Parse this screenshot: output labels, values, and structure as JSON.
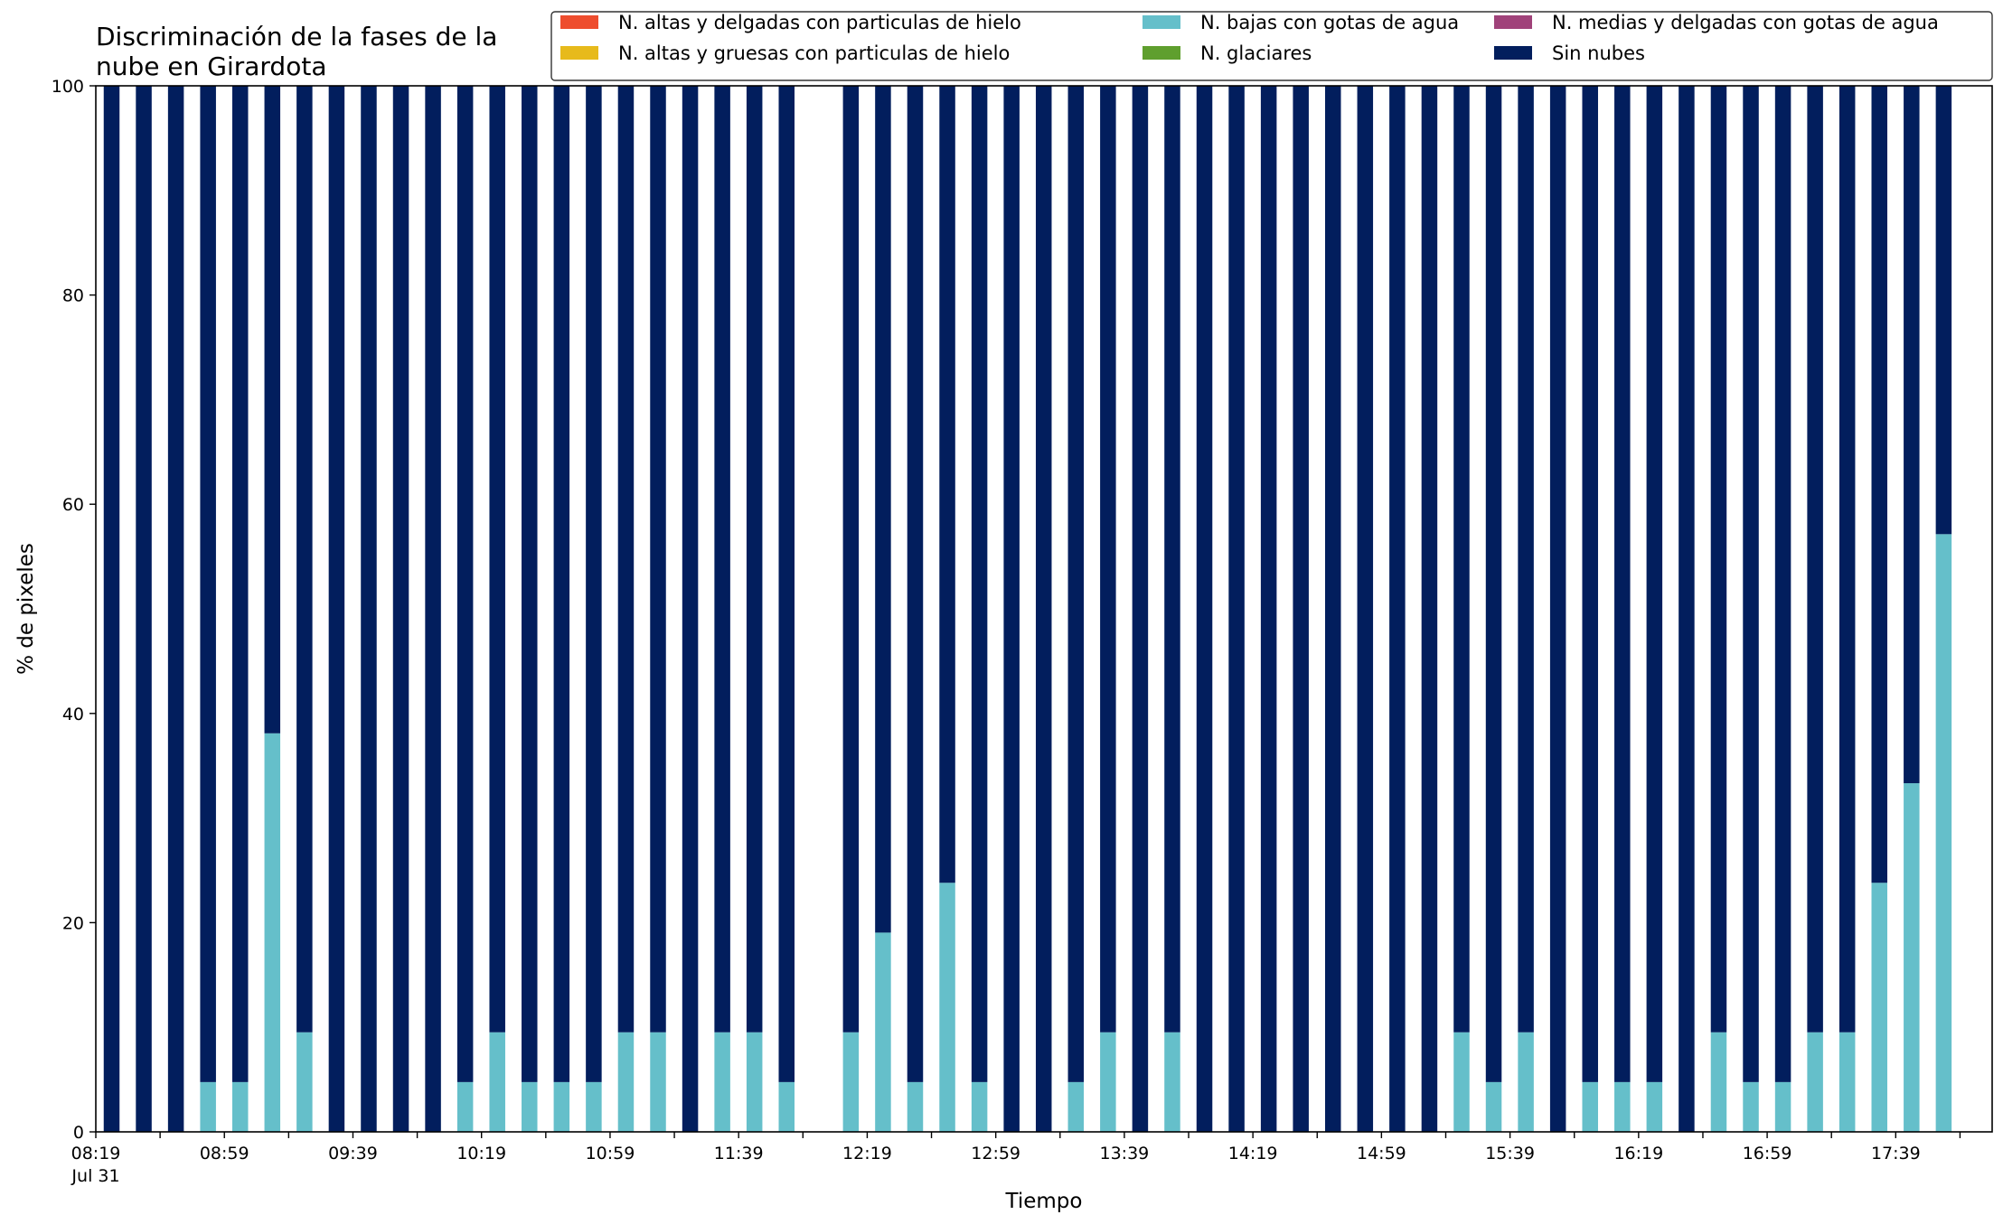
{
  "chart_data": {
    "type": "bar",
    "stacked": true,
    "title_lines": [
      "Discriminación de la fases de la",
      "nube en Girardota"
    ],
    "xlabel": "Tiempo",
    "ylabel": "% de pixeles",
    "ylim": [
      0,
      100
    ],
    "yticks": [
      0,
      20,
      40,
      60,
      80,
      100
    ],
    "date_label": "Jul 31",
    "x_start": "08:19",
    "x_end": "18:09",
    "bar_interval_minutes": 10,
    "x_tick_labels": [
      "08:19",
      "08:59",
      "09:39",
      "10:19",
      "10:59",
      "11:39",
      "12:19",
      "12:59",
      "13:39",
      "14:19",
      "14:59",
      "15:39",
      "16:19",
      "16:59",
      "17:39"
    ],
    "categories": [
      "08:19",
      "08:29",
      "08:39",
      "08:49",
      "08:59",
      "09:09",
      "09:19",
      "09:29",
      "09:39",
      "09:49",
      "09:59",
      "10:09",
      "10:19",
      "10:29",
      "10:39",
      "10:49",
      "10:59",
      "11:09",
      "11:19",
      "11:29",
      "11:39",
      "11:49",
      "11:59",
      "12:09",
      "12:19",
      "12:29",
      "12:39",
      "12:49",
      "12:59",
      "13:09",
      "13:19",
      "13:29",
      "13:39",
      "13:49",
      "13:59",
      "14:09",
      "14:19",
      "14:29",
      "14:39",
      "14:49",
      "14:59",
      "15:09",
      "15:19",
      "15:29",
      "15:39",
      "15:49",
      "15:59",
      "16:09",
      "16:19",
      "16:29",
      "16:39",
      "16:49",
      "16:59",
      "17:09",
      "17:19",
      "17:29",
      "17:39",
      "17:49"
    ],
    "series": [
      {
        "name": "N. altas y delgadas con particulas de hielo",
        "color": "#ee4d2e",
        "values": [
          0,
          0,
          0,
          0,
          0,
          0,
          0,
          0,
          0,
          0,
          0,
          0,
          0,
          0,
          0,
          0,
          0,
          0,
          0,
          0,
          0,
          0,
          null,
          0,
          0,
          0,
          0,
          0,
          0,
          0,
          0,
          0,
          0,
          0,
          0,
          0,
          0,
          0,
          0,
          0,
          0,
          0,
          0,
          0,
          0,
          0,
          0,
          0,
          0,
          0,
          0,
          0,
          0,
          0,
          0,
          0,
          0,
          0
        ]
      },
      {
        "name": "N. altas y gruesas con particulas de hielo",
        "color": "#e7ba1b",
        "values": [
          0,
          0,
          0,
          0,
          0,
          0,
          0,
          0,
          0,
          0,
          0,
          0,
          0,
          0,
          0,
          0,
          0,
          0,
          0,
          0,
          0,
          0,
          null,
          0,
          0,
          0,
          0,
          0,
          0,
          0,
          0,
          0,
          0,
          0,
          0,
          0,
          0,
          0,
          0,
          0,
          0,
          0,
          0,
          0,
          0,
          0,
          0,
          0,
          0,
          0,
          0,
          0,
          0,
          0,
          0,
          0,
          0,
          0
        ]
      },
      {
        "name": "N. bajas con gotas de agua",
        "color": "#65bfca",
        "values": [
          0,
          0,
          0,
          4.76,
          4.76,
          38.1,
          9.52,
          0,
          0,
          0,
          0,
          4.76,
          9.52,
          4.76,
          4.76,
          4.76,
          9.52,
          9.52,
          0,
          9.52,
          9.52,
          4.76,
          null,
          9.52,
          19.05,
          4.76,
          23.81,
          4.76,
          0,
          0,
          4.76,
          9.52,
          0,
          9.52,
          0,
          0,
          0,
          0,
          0,
          0,
          0,
          0,
          9.52,
          4.76,
          9.52,
          0,
          4.76,
          4.76,
          4.76,
          0,
          9.52,
          4.76,
          4.76,
          9.52,
          9.52,
          23.81,
          33.33,
          57.14
        ]
      },
      {
        "name": "N. glaciares",
        "color": "#5f9f2e",
        "values": [
          0,
          0,
          0,
          0,
          0,
          0,
          0,
          0,
          0,
          0,
          0,
          0,
          0,
          0,
          0,
          0,
          0,
          0,
          0,
          0,
          0,
          0,
          null,
          0,
          0,
          0,
          0,
          0,
          0,
          0,
          0,
          0,
          0,
          0,
          0,
          0,
          0,
          0,
          0,
          0,
          0,
          0,
          0,
          0,
          0,
          0,
          0,
          0,
          0,
          0,
          0,
          0,
          0,
          0,
          0,
          0,
          0,
          0
        ]
      },
      {
        "name": "N. medias y delgadas con gotas de agua",
        "color": "#a0427a",
        "values": [
          0,
          0,
          0,
          0,
          0,
          0,
          0,
          0,
          0,
          0,
          0,
          0,
          0,
          0,
          0,
          0,
          0,
          0,
          0,
          0,
          0,
          0,
          null,
          0,
          0,
          0,
          0,
          0,
          0,
          0,
          0,
          0,
          0,
          0,
          0,
          0,
          0,
          0,
          0,
          0,
          0,
          0,
          0,
          0,
          0,
          0,
          0,
          0,
          0,
          0,
          0,
          0,
          0,
          0,
          0,
          0,
          0,
          0
        ]
      },
      {
        "name": "Sin nubes",
        "color": "#021e5d",
        "values": [
          100,
          100,
          100,
          95.24,
          95.24,
          61.9,
          90.48,
          100,
          100,
          100,
          100,
          95.24,
          90.48,
          95.24,
          95.24,
          95.24,
          90.48,
          90.48,
          100,
          90.48,
          90.48,
          95.24,
          null,
          90.48,
          80.95,
          95.24,
          76.19,
          95.24,
          100,
          100,
          95.24,
          90.48,
          100,
          90.48,
          100,
          100,
          100,
          100,
          100,
          100,
          100,
          100,
          90.48,
          95.24,
          90.48,
          100,
          95.24,
          95.24,
          95.24,
          100,
          90.48,
          95.24,
          95.24,
          90.48,
          90.48,
          76.19,
          66.67,
          42.86
        ]
      }
    ],
    "legend_placement": "top-right",
    "legend_columns": 3,
    "grid": false
  }
}
